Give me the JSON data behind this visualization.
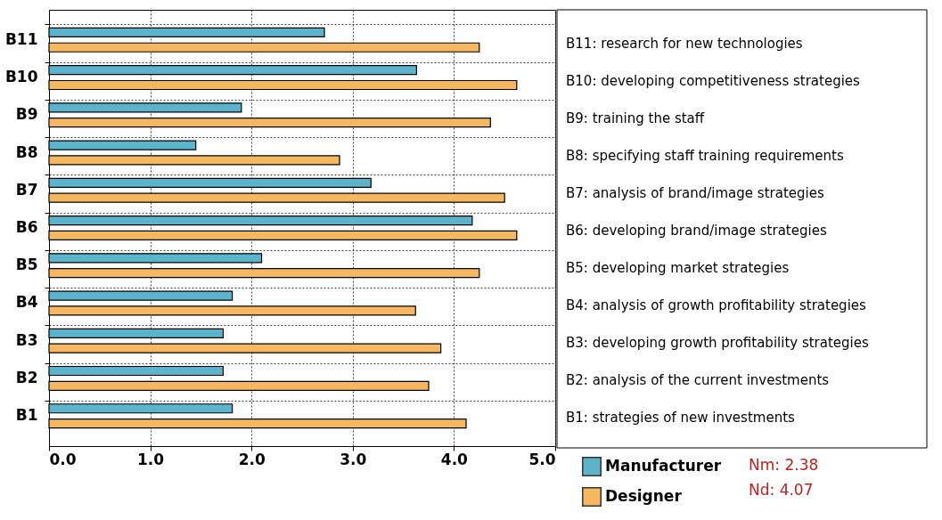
{
  "chart_data": {
    "type": "bar",
    "orientation": "horizontal",
    "categories": [
      "B11",
      "B10",
      "B9",
      "B8",
      "B7",
      "B6",
      "B5",
      "B4",
      "B3",
      "B2",
      "B1"
    ],
    "series": [
      {
        "name": "Manufacturer",
        "color": "#5bb4cc",
        "values": [
          2.72,
          3.63,
          1.9,
          1.45,
          3.18,
          4.18,
          2.1,
          1.81,
          1.72,
          1.72,
          1.81
        ]
      },
      {
        "name": "Designer",
        "color": "#f5b860",
        "values": [
          4.25,
          4.62,
          4.36,
          2.87,
          4.5,
          4.62,
          4.25,
          3.62,
          3.87,
          3.75,
          4.12
        ]
      }
    ],
    "xlim": [
      0,
      5
    ],
    "xticks": [
      {
        "value": 0,
        "label": "0.0"
      },
      {
        "value": 1,
        "label": "1.0"
      },
      {
        "value": 2,
        "label": "2.0"
      },
      {
        "value": 3,
        "label": "3.0"
      },
      {
        "value": 4,
        "label": "4.0"
      },
      {
        "value": 5,
        "label": "5.0"
      }
    ],
    "grid": true,
    "legend": "bottom right",
    "annotations": [
      "B11: research for new technologies",
      "B10: developing competitiveness strategies",
      "B9: training the staff",
      "B8: specifying staff training requirements",
      "B7: analysis of brand/image strategies",
      "B6: developing brand/image strategies",
      "B5: developing market strategies",
      "B4: analysis of growth profitability strategies",
      "B3: developing growth profitability strategies",
      "B2: analysis of the current investments",
      "B1: strategies of new investments",
      "Nm: 2.38",
      "Nd: 4.07"
    ]
  }
}
